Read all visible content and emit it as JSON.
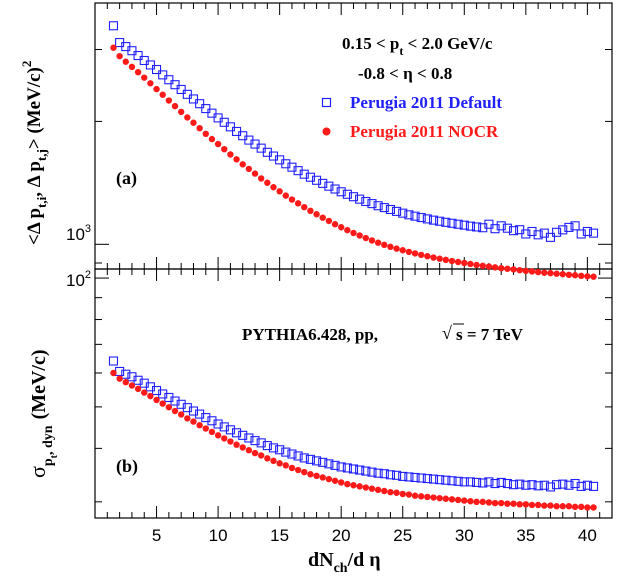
{
  "chart_data": [
    {
      "panel": "(a)",
      "type": "scatter",
      "ylabel": "<Δ p_t,i, Δ p_t,j> (MeV/c)^2",
      "yscale": "log",
      "ylim": [
        870,
        3900
      ],
      "xlim": [
        0,
        42
      ],
      "yticks": [
        1000
      ],
      "ytick_labels": [
        "10^3"
      ],
      "text": [
        "0.15 < p_t < 2.0 GeV/c",
        "-0.8 < η < 0.8"
      ],
      "legend": "top-right",
      "series": [
        {
          "name": "Perugia 2011 Default",
          "color": "#2020ff",
          "marker": "open-square",
          "x": [
            1.5,
            2,
            2.5,
            3,
            3.5,
            4,
            4.5,
            5,
            5.5,
            6,
            6.5,
            7,
            7.5,
            8,
            8.5,
            9,
            9.5,
            10,
            10.5,
            11,
            11.5,
            12,
            12.5,
            13,
            13.5,
            14,
            14.5,
            15,
            15.5,
            16,
            16.5,
            17,
            17.5,
            18,
            18.5,
            19,
            19.5,
            20,
            20.5,
            21,
            21.5,
            22,
            22.5,
            23,
            23.5,
            24,
            24.5,
            25,
            25.5,
            26,
            26.5,
            27,
            27.5,
            28,
            28.5,
            29,
            29.5,
            30,
            30.5,
            31,
            31.5,
            32,
            32.5,
            33,
            33.5,
            34,
            34.5,
            35,
            35.5,
            36,
            36.5,
            37,
            37.5,
            38,
            38.5,
            39,
            39.5,
            40,
            40.5
          ],
          "values": [
            3430,
            3120,
            3050,
            2980,
            2900,
            2820,
            2750,
            2680,
            2600,
            2530,
            2460,
            2395,
            2330,
            2270,
            2210,
            2150,
            2095,
            2040,
            1990,
            1940,
            1890,
            1845,
            1800,
            1760,
            1720,
            1680,
            1645,
            1610,
            1575,
            1545,
            1515,
            1485,
            1460,
            1435,
            1410,
            1388,
            1366,
            1345,
            1326,
            1308,
            1290,
            1273,
            1258,
            1243,
            1230,
            1217,
            1204,
            1192,
            1181,
            1172,
            1163,
            1154,
            1146,
            1139,
            1132,
            1126,
            1120,
            1114,
            1108,
            1103,
            1098,
            1120,
            1092,
            1110,
            1095,
            1080,
            1086,
            1060,
            1075,
            1055,
            1065,
            1040,
            1070,
            1085,
            1100,
            1110,
            1060,
            1075,
            1065
          ]
        },
        {
          "name": "Perugia 2011 NOCR",
          "color": "#ff1a1a",
          "marker": "filled-circle",
          "x": [
            1.5,
            2,
            2.5,
            3,
            3.5,
            4,
            4.5,
            5,
            5.5,
            6,
            6.5,
            7,
            7.5,
            8,
            8.5,
            9,
            9.5,
            10,
            10.5,
            11,
            11.5,
            12,
            12.5,
            13,
            13.5,
            14,
            14.5,
            15,
            15.5,
            16,
            16.5,
            17,
            17.5,
            18,
            18.5,
            19,
            19.5,
            20,
            20.5,
            21,
            21.5,
            22,
            22.5,
            23,
            23.5,
            24,
            24.5,
            25,
            25.5,
            26,
            26.5,
            27,
            27.5,
            28,
            28.5,
            29,
            29.5,
            30,
            30.5,
            31,
            31.5,
            32,
            32.5,
            33,
            33.5,
            34,
            34.5,
            35,
            35.5,
            36,
            36.5,
            37,
            37.5,
            38,
            38.5,
            39,
            39.5,
            40,
            40.5
          ],
          "values": [
            3030,
            2890,
            2800,
            2720,
            2640,
            2560,
            2480,
            2400,
            2325,
            2250,
            2180,
            2110,
            2045,
            1985,
            1925,
            1865,
            1810,
            1760,
            1710,
            1660,
            1615,
            1570,
            1530,
            1490,
            1450,
            1415,
            1380,
            1348,
            1316,
            1287,
            1260,
            1233,
            1208,
            1185,
            1162,
            1141,
            1120,
            1101,
            1083,
            1066,
            1051,
            1036,
            1022,
            1009,
            997,
            986,
            976,
            967,
            958,
            950,
            942,
            935,
            928,
            922,
            916,
            910,
            905,
            900,
            895,
            890,
            886,
            882,
            878,
            874,
            871,
            868,
            864,
            861,
            858,
            855,
            852,
            850,
            847,
            845,
            842,
            840,
            837,
            835,
            833
          ]
        }
      ]
    },
    {
      "panel": "(b)",
      "type": "scatter",
      "ylabel": "σ_pt,dyn (MeV/c)",
      "yscale": "log",
      "ylim": [
        27.5,
        105
      ],
      "xlim": [
        0,
        42
      ],
      "xlabel": "dN_ch/dη",
      "xticks": [
        5,
        10,
        15,
        20,
        25,
        30,
        35,
        40
      ],
      "yticks": [
        100
      ],
      "ytick_labels": [
        "10^2"
      ],
      "text": [
        "PYTHIA6.428,  pp,",
        "√s = 7 TeV"
      ],
      "series": [
        {
          "name": "Perugia 2011 Default",
          "color": "#2020ff",
          "marker": "open-square",
          "x": [
            1.5,
            2,
            2.5,
            3,
            3.5,
            4,
            4.5,
            5,
            5.5,
            6,
            6.5,
            7,
            7.5,
            8,
            8.5,
            9,
            9.5,
            10,
            10.5,
            11,
            11.5,
            12,
            12.5,
            13,
            13.5,
            14,
            14.5,
            15,
            15.5,
            16,
            16.5,
            17,
            17.5,
            18,
            18.5,
            19,
            19.5,
            20,
            20.5,
            21,
            21.5,
            22,
            22.5,
            23,
            23.5,
            24,
            24.5,
            25,
            25.5,
            26,
            26.5,
            27,
            27.5,
            28,
            28.5,
            29,
            29.5,
            30,
            30.5,
            31,
            31.5,
            32,
            32.5,
            33,
            33.5,
            34,
            34.5,
            35,
            35.5,
            36,
            36.5,
            37,
            37.5,
            38,
            38.5,
            39,
            39.5,
            40,
            40.5
          ],
          "values": [
            64,
            60.5,
            59.6,
            58.8,
            57.7,
            56.8,
            55.7,
            54.6,
            53.6,
            52.6,
            51.6,
            50.7,
            49.8,
            48.9,
            48.1,
            47.2,
            46.4,
            45.6,
            44.9,
            44.2,
            43.5,
            42.9,
            42.3,
            41.7,
            41.2,
            40.6,
            40.1,
            39.7,
            39.2,
            38.8,
            38.4,
            38.0,
            37.7,
            37.4,
            37.1,
            36.8,
            36.5,
            36.2,
            36.0,
            35.8,
            35.6,
            35.4,
            35.2,
            35.0,
            34.9,
            34.7,
            34.6,
            34.4,
            34.3,
            34.2,
            34.1,
            34.0,
            33.9,
            33.8,
            33.7,
            33.6,
            33.5,
            33.4,
            33.4,
            33.3,
            33.2,
            33.4,
            33.1,
            33.3,
            33.1,
            32.9,
            33.0,
            32.8,
            32.9,
            32.7,
            32.8,
            32.5,
            32.9,
            33.0,
            32.8,
            33.1,
            32.6,
            32.8,
            32.6
          ]
        },
        {
          "name": "Perugia 2011 NOCR",
          "color": "#ff1a1a",
          "marker": "filled-circle",
          "x": [
            1.5,
            2,
            2.5,
            3,
            3.5,
            4,
            4.5,
            5,
            5.5,
            6,
            6.5,
            7,
            7.5,
            8,
            8.5,
            9,
            9.5,
            10,
            10.5,
            11,
            11.5,
            12,
            12.5,
            13,
            13.5,
            14,
            14.5,
            15,
            15.5,
            16,
            16.5,
            17,
            17.5,
            18,
            18.5,
            19,
            19.5,
            20,
            20.5,
            21,
            21.5,
            22,
            22.5,
            23,
            23.5,
            24,
            24.5,
            25,
            25.5,
            26,
            26.5,
            27,
            27.5,
            28,
            28.5,
            29,
            29.5,
            30,
            30.5,
            31,
            31.5,
            32,
            32.5,
            33,
            33.5,
            34,
            34.5,
            35,
            35.5,
            36,
            36.5,
            37,
            37.5,
            38,
            38.5,
            39,
            39.5,
            40,
            40.5
          ],
          "values": [
            60,
            58.2,
            57.1,
            56.1,
            55.1,
            54.0,
            53.0,
            51.9,
            50.9,
            49.9,
            48.9,
            48.0,
            47.0,
            46.2,
            45.3,
            44.5,
            43.7,
            42.9,
            42.2,
            41.5,
            40.8,
            40.2,
            39.6,
            39.0,
            38.5,
            37.9,
            37.4,
            36.9,
            36.5,
            36.0,
            35.6,
            35.2,
            34.8,
            34.5,
            34.2,
            33.9,
            33.6,
            33.3,
            33.0,
            32.8,
            32.6,
            32.4,
            32.2,
            32.0,
            31.8,
            31.6,
            31.5,
            31.3,
            31.2,
            31.0,
            30.9,
            30.8,
            30.7,
            30.6,
            30.5,
            30.4,
            30.3,
            30.2,
            30.1,
            30.0,
            30.0,
            29.9,
            29.8,
            29.8,
            29.7,
            29.7,
            29.6,
            29.6,
            29.5,
            29.5,
            29.4,
            29.4,
            29.3,
            29.3,
            29.3,
            29.2,
            29.2,
            29.1,
            29.1
          ]
        }
      ]
    }
  ],
  "panel_a": {
    "label": "(a)",
    "ylabel_main": "<Δ p",
    "ylabel_sub1": "t,i",
    "ylabel_mid": ",  Δ p",
    "ylabel_sub2": "t,j",
    "ylabel_end": "> (MeV/c)",
    "ylabel_sup": "2",
    "ytick_base": "10",
    "ytick_exp": "3",
    "cut1_pre": "0.15 < p",
    "cut1_sub": "t",
    "cut1_post": " < 2.0 GeV/c",
    "cut2": "-0.8 <  η < 0.8",
    "legend_default": "Perugia 2011 Default",
    "legend_nocr": "Perugia 2011 NOCR"
  },
  "panel_b": {
    "label": "(b)",
    "ylabel_sigma": "σ",
    "ylabel_sub_p": "p",
    "ylabel_sub_t": "t",
    "ylabel_sub_dyn": ", dyn",
    "ylabel_unit": "(MeV/c)",
    "ytick_base": "10",
    "ytick_exp": "2",
    "info_text": "PYTHIA6.428,  pp,",
    "sqrt_symbol": "√",
    "sqrt_text": "s = 7 TeV",
    "xlabel_main": "dN",
    "xlabel_sub": "ch",
    "xlabel_post": "/d η"
  }
}
